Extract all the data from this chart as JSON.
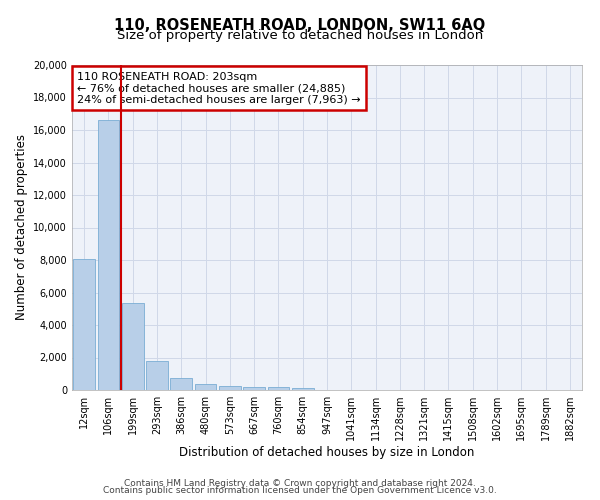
{
  "title": "110, ROSENEATH ROAD, LONDON, SW11 6AQ",
  "subtitle": "Size of property relative to detached houses in London",
  "xlabel": "Distribution of detached houses by size in London",
  "ylabel": "Number of detached properties",
  "categories": [
    "12sqm",
    "106sqm",
    "199sqm",
    "293sqm",
    "386sqm",
    "480sqm",
    "573sqm",
    "667sqm",
    "760sqm",
    "854sqm",
    "947sqm",
    "1041sqm",
    "1134sqm",
    "1228sqm",
    "1321sqm",
    "1415sqm",
    "1508sqm",
    "1602sqm",
    "1695sqm",
    "1789sqm",
    "1882sqm"
  ],
  "values": [
    8050,
    16600,
    5350,
    1800,
    750,
    350,
    230,
    200,
    180,
    100,
    0,
    0,
    0,
    0,
    0,
    0,
    0,
    0,
    0,
    0,
    0
  ],
  "bar_color": "#b8cfe8",
  "bar_edgecolor": "#7aadd4",
  "vline_color": "#cc0000",
  "vline_xindex": 1.5,
  "annotation_text": "110 ROSENEATH ROAD: 203sqm\n← 76% of detached houses are smaller (24,885)\n24% of semi-detached houses are larger (7,963) →",
  "annotation_box_edgecolor": "#cc0000",
  "ylim": [
    0,
    20000
  ],
  "yticks": [
    0,
    2000,
    4000,
    6000,
    8000,
    10000,
    12000,
    14000,
    16000,
    18000,
    20000
  ],
  "grid_color": "#d0d8e8",
  "background_color": "#eef2f9",
  "footer_line1": "Contains HM Land Registry data © Crown copyright and database right 2024.",
  "footer_line2": "Contains public sector information licensed under the Open Government Licence v3.0.",
  "title_fontsize": 10.5,
  "subtitle_fontsize": 9.5,
  "axis_label_fontsize": 8.5,
  "tick_fontsize": 7,
  "annotation_fontsize": 8,
  "footer_fontsize": 6.5
}
